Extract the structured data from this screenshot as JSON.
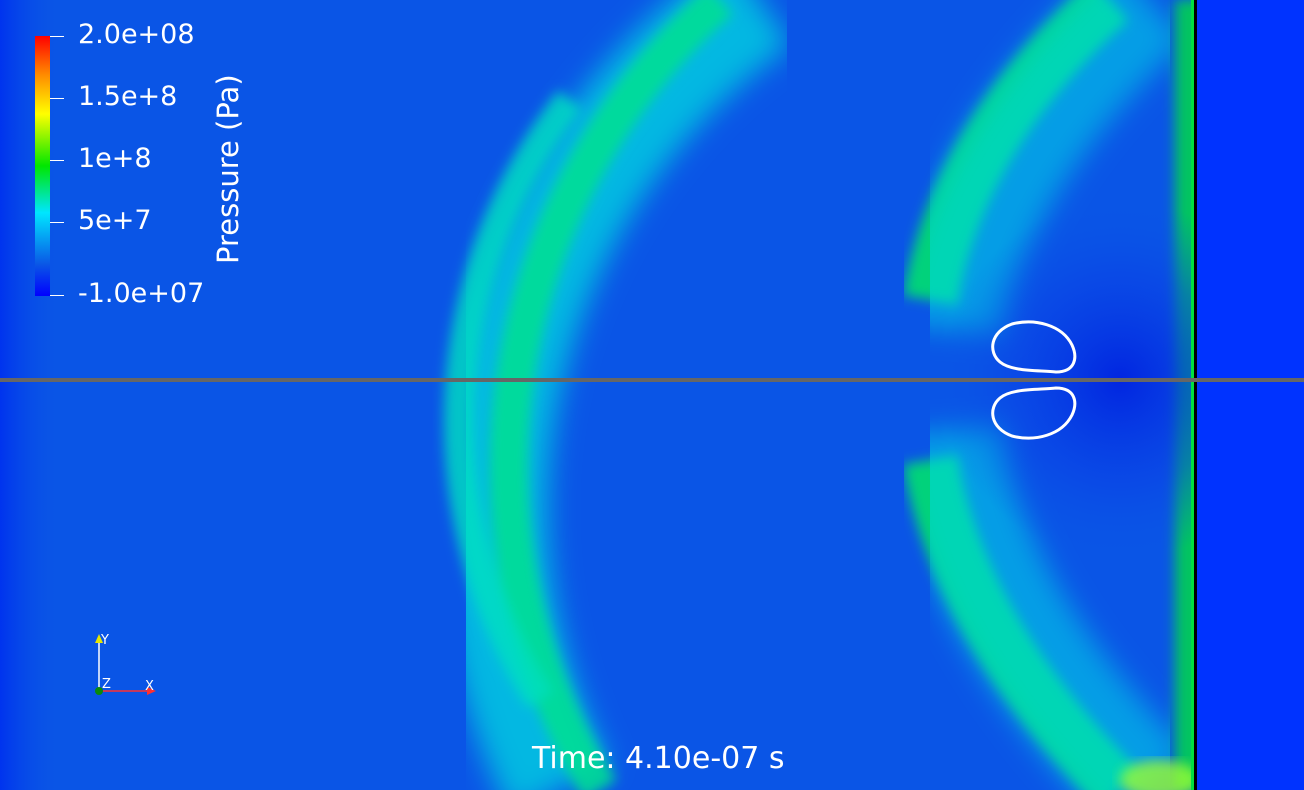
{
  "colorbar": {
    "title": "Pressure (Pa)",
    "labels": {
      "max": "2.0e+08",
      "l1": "1.5e+8",
      "l2": "1e+8",
      "l3": "5e+7",
      "min": "-1.0e+07"
    },
    "colormap": [
      "#0000ff",
      "#0a55e6",
      "#00e6ff",
      "#00e600",
      "#ffff00",
      "#ff8c00",
      "#ff0000"
    ]
  },
  "time_annotation": "Time: 4.10e-07 s",
  "axes": {
    "x": "X",
    "y": "Y",
    "z": "Z"
  },
  "colors": {
    "background_field": "#0a55e6",
    "wave_front": "#00e6a8",
    "bubble_outline": "#ffffff",
    "axis_line": "#666666",
    "right_region": "#0033ff"
  }
}
